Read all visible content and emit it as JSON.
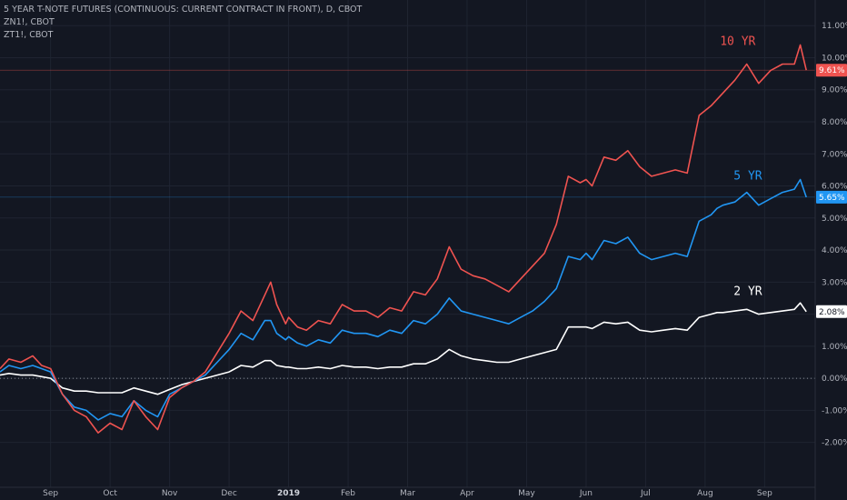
{
  "legend": {
    "line1": "5 YEAR T-NOTE FUTURES (CONTINUOUS: CURRENT CONTRACT IN FRONT), D, CBOT",
    "line2": "ZN1!, CBOT",
    "line3": "ZT1!, CBOT"
  },
  "colors": {
    "background": "#131722",
    "grid": "#1f2431",
    "axis_text": "#b2b5be",
    "ten_yr": "#ef5350",
    "five_yr": "#2196f3",
    "two_yr": "#ffffff"
  },
  "chart_data": {
    "type": "line",
    "x_tick_labels": [
      "Sep",
      "Oct",
      "Nov",
      "Dec",
      "2019",
      "Feb",
      "Mar",
      "Apr",
      "May",
      "Jun",
      "Jul",
      "Aug",
      "Sep"
    ],
    "x_tick_positions": [
      0.5,
      1.5,
      2.5,
      3.5,
      4.5,
      5.5,
      6.5,
      7.5,
      8.5,
      9.5,
      10.5,
      11.5,
      12.5
    ],
    "x_bold_label": "2019",
    "y_tick_labels": [
      "11.00%",
      "10.00%",
      "9.00%",
      "8.00%",
      "7.00%",
      "6.00%",
      "5.00%",
      "4.00%",
      "3.00%",
      "2.00%",
      "1.00%",
      "0.00%",
      "-1.00%",
      "-2.00%"
    ],
    "y_tick_values": [
      11,
      10,
      9,
      8,
      7,
      6,
      5,
      4,
      3,
      2,
      1,
      0,
      -1,
      -2
    ],
    "ylim": [
      -3.4,
      11.8
    ],
    "xlim": [
      -0.35,
      13.35
    ],
    "series": [
      {
        "name": "10 YR",
        "color": "#ef5350",
        "last_value_label": "9.61%",
        "last_value": 9.61,
        "x": [
          -0.35,
          -0.2,
          0,
          0.2,
          0.35,
          0.5,
          0.7,
          0.9,
          1.1,
          1.3,
          1.5,
          1.7,
          1.9,
          2.1,
          2.3,
          2.5,
          2.7,
          2.9,
          3.1,
          3.3,
          3.5,
          3.7,
          3.9,
          4.1,
          4.2,
          4.3,
          4.45,
          4.5,
          4.65,
          4.8,
          5,
          5.2,
          5.4,
          5.6,
          5.8,
          6,
          6.2,
          6.4,
          6.6,
          6.8,
          7,
          7.2,
          7.4,
          7.6,
          7.8,
          8,
          8.2,
          8.4,
          8.6,
          8.8,
          9,
          9.2,
          9.4,
          9.5,
          9.6,
          9.8,
          10,
          10.2,
          10.4,
          10.6,
          10.8,
          11,
          11.2,
          11.4,
          11.6,
          11.7,
          11.8,
          12,
          12.2,
          12.4,
          12.6,
          12.8,
          13,
          13.1,
          13.2
        ],
        "y": [
          0.3,
          0.6,
          0.5,
          0.7,
          0.4,
          0.3,
          -0.5,
          -1.0,
          -1.2,
          -1.7,
          -1.4,
          -1.6,
          -0.7,
          -1.2,
          -1.6,
          -0.6,
          -0.3,
          -0.1,
          0.2,
          0.8,
          1.4,
          2.1,
          1.8,
          2.6,
          3.0,
          2.3,
          1.7,
          1.9,
          1.6,
          1.5,
          1.8,
          1.7,
          2.3,
          2.1,
          2.1,
          1.9,
          2.2,
          2.1,
          2.7,
          2.6,
          3.1,
          4.1,
          3.4,
          3.2,
          3.1,
          2.9,
          2.7,
          3.1,
          3.5,
          3.9,
          4.8,
          6.3,
          6.1,
          6.2,
          6.0,
          6.9,
          6.8,
          7.1,
          6.6,
          6.3,
          6.4,
          6.5,
          6.4,
          8.2,
          8.5,
          8.7,
          8.9,
          9.3,
          9.8,
          9.2,
          9.6,
          9.8,
          9.8,
          10.4,
          9.61
        ]
      },
      {
        "name": "5 YR",
        "color": "#2196f3",
        "last_value_label": "5.65%",
        "last_value": 5.65,
        "x": [
          -0.35,
          -0.2,
          0,
          0.2,
          0.35,
          0.5,
          0.7,
          0.9,
          1.1,
          1.3,
          1.5,
          1.7,
          1.9,
          2.1,
          2.3,
          2.5,
          2.7,
          2.9,
          3.1,
          3.3,
          3.5,
          3.7,
          3.9,
          4.1,
          4.2,
          4.3,
          4.45,
          4.5,
          4.65,
          4.8,
          5,
          5.2,
          5.4,
          5.6,
          5.8,
          6,
          6.2,
          6.4,
          6.6,
          6.8,
          7,
          7.2,
          7.4,
          7.6,
          7.8,
          8,
          8.2,
          8.4,
          8.6,
          8.8,
          9,
          9.2,
          9.4,
          9.5,
          9.6,
          9.8,
          10,
          10.2,
          10.4,
          10.6,
          10.8,
          11,
          11.2,
          11.4,
          11.6,
          11.7,
          11.8,
          12,
          12.2,
          12.4,
          12.6,
          12.8,
          13,
          13.1,
          13.2
        ],
        "y": [
          0.2,
          0.4,
          0.3,
          0.4,
          0.3,
          0.2,
          -0.5,
          -0.9,
          -1.0,
          -1.3,
          -1.1,
          -1.2,
          -0.7,
          -1.0,
          -1.2,
          -0.5,
          -0.3,
          -0.1,
          0.1,
          0.5,
          0.9,
          1.4,
          1.2,
          1.8,
          1.8,
          1.4,
          1.2,
          1.3,
          1.1,
          1.0,
          1.2,
          1.1,
          1.5,
          1.4,
          1.4,
          1.3,
          1.5,
          1.4,
          1.8,
          1.7,
          2.0,
          2.5,
          2.1,
          2.0,
          1.9,
          1.8,
          1.7,
          1.9,
          2.1,
          2.4,
          2.8,
          3.8,
          3.7,
          3.9,
          3.7,
          4.3,
          4.2,
          4.4,
          3.9,
          3.7,
          3.8,
          3.9,
          3.8,
          4.9,
          5.1,
          5.3,
          5.4,
          5.5,
          5.8,
          5.4,
          5.6,
          5.8,
          5.9,
          6.2,
          5.65
        ]
      },
      {
        "name": "2 YR",
        "color": "#ffffff",
        "last_value_label": "2.08%",
        "last_value": 2.08,
        "x": [
          -0.35,
          -0.2,
          0,
          0.2,
          0.35,
          0.5,
          0.7,
          0.9,
          1.1,
          1.3,
          1.5,
          1.7,
          1.9,
          2.1,
          2.3,
          2.5,
          2.7,
          2.9,
          3.1,
          3.3,
          3.5,
          3.7,
          3.9,
          4.1,
          4.2,
          4.3,
          4.45,
          4.5,
          4.65,
          4.8,
          5,
          5.2,
          5.4,
          5.6,
          5.8,
          6,
          6.2,
          6.4,
          6.6,
          6.8,
          7,
          7.2,
          7.4,
          7.6,
          7.8,
          8,
          8.2,
          8.4,
          8.6,
          8.8,
          9,
          9.2,
          9.4,
          9.5,
          9.6,
          9.8,
          10,
          10.2,
          10.4,
          10.6,
          10.8,
          11,
          11.2,
          11.4,
          11.6,
          11.7,
          11.8,
          12,
          12.2,
          12.4,
          12.6,
          12.8,
          13,
          13.1,
          13.2
        ],
        "y": [
          0.1,
          0.15,
          0.1,
          0.1,
          0.05,
          0.0,
          -0.3,
          -0.4,
          -0.4,
          -0.45,
          -0.45,
          -0.45,
          -0.3,
          -0.4,
          -0.5,
          -0.35,
          -0.2,
          -0.1,
          0.0,
          0.1,
          0.2,
          0.4,
          0.35,
          0.55,
          0.55,
          0.4,
          0.35,
          0.35,
          0.3,
          0.3,
          0.35,
          0.3,
          0.4,
          0.35,
          0.35,
          0.3,
          0.35,
          0.35,
          0.45,
          0.45,
          0.6,
          0.9,
          0.7,
          0.6,
          0.55,
          0.5,
          0.5,
          0.6,
          0.7,
          0.8,
          0.9,
          1.6,
          1.6,
          1.6,
          1.55,
          1.75,
          1.7,
          1.75,
          1.5,
          1.45,
          1.5,
          1.55,
          1.5,
          1.9,
          2.0,
          2.05,
          2.05,
          2.1,
          2.15,
          2.0,
          2.05,
          2.1,
          2.15,
          2.35,
          2.08
        ]
      }
    ]
  }
}
